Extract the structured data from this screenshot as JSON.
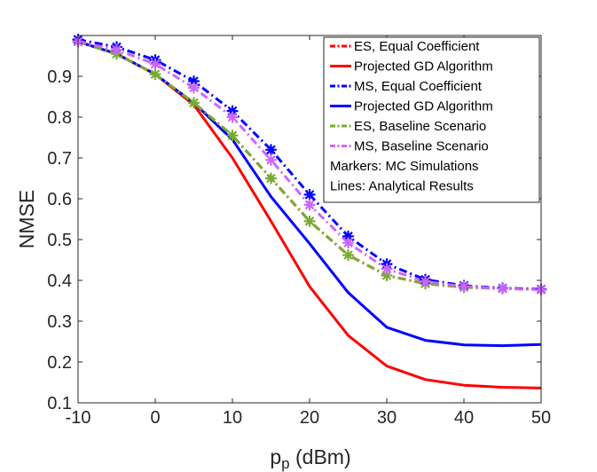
{
  "chart_data": {
    "type": "line",
    "title": "",
    "xlabel": "p",
    "xlabel_subscript": "p",
    "xlabel_unit": " (dBm)",
    "ylabel": "NMSE",
    "xlim": [
      -10,
      50
    ],
    "ylim": [
      0.1,
      1.0
    ],
    "x_ticks": [
      -10,
      0,
      10,
      20,
      30,
      40,
      50
    ],
    "y_ticks": [
      0.1,
      0.2,
      0.3,
      0.4,
      0.5,
      0.6,
      0.7,
      0.8,
      0.9
    ],
    "x_tick_labels": [
      "-10",
      "0",
      "10",
      "20",
      "30",
      "40",
      "50"
    ],
    "y_tick_labels": [
      "0.1",
      "0.2",
      "0.3",
      "0.4",
      "0.5",
      "0.6",
      "0.7",
      "0.8",
      "0.9"
    ],
    "grid": false,
    "legend_position": "top-right",
    "x": [
      -10,
      -5,
      0,
      5,
      10,
      15,
      20,
      25,
      30,
      35,
      40,
      45,
      50
    ],
    "series": [
      {
        "name": "ES, Equal Coefficient",
        "color": "#ff0000",
        "line": "dashdot",
        "marker": "none",
        "values": [
          0.985,
          0.955,
          0.905,
          0.835,
          0.755,
          0.65,
          0.545,
          0.462,
          0.412,
          0.392,
          0.383,
          0.38,
          0.378
        ]
      },
      {
        "name": "Projected GD Algorithm",
        "color": "#ff0000",
        "line": "solid",
        "marker": "none",
        "values": [
          0.985,
          0.955,
          0.905,
          0.83,
          0.7,
          0.545,
          0.385,
          0.265,
          0.19,
          0.157,
          0.143,
          0.138,
          0.136
        ]
      },
      {
        "name": "MS, Equal Coefficient",
        "color": "#0000ff",
        "line": "dashdot",
        "marker": "asterisk",
        "values": [
          0.99,
          0.972,
          0.94,
          0.888,
          0.815,
          0.72,
          0.61,
          0.508,
          0.44,
          0.402,
          0.387,
          0.381,
          0.378
        ]
      },
      {
        "name": "Projected GD Algorithm",
        "color": "#0000ff",
        "line": "solid",
        "marker": "none",
        "values": [
          0.985,
          0.955,
          0.905,
          0.835,
          0.745,
          0.605,
          0.49,
          0.37,
          0.285,
          0.253,
          0.242,
          0.24,
          0.243
        ]
      },
      {
        "name": "ES, Baseline Scenario",
        "color": "#77ac30",
        "line": "dashdot",
        "marker": "asterisk",
        "values": [
          0.985,
          0.955,
          0.905,
          0.835,
          0.755,
          0.65,
          0.545,
          0.462,
          0.412,
          0.392,
          0.383,
          0.38,
          0.378
        ]
      },
      {
        "name": "MS, Baseline Scenario",
        "color": "#cc66ff",
        "line": "dashdot",
        "marker": "asterisk",
        "values": [
          0.985,
          0.965,
          0.93,
          0.872,
          0.8,
          0.695,
          0.585,
          0.492,
          0.428,
          0.397,
          0.385,
          0.38,
          0.377
        ]
      }
    ],
    "legend_notes": [
      "Markers: MC Simulations",
      "Lines: Analytical Results"
    ]
  }
}
